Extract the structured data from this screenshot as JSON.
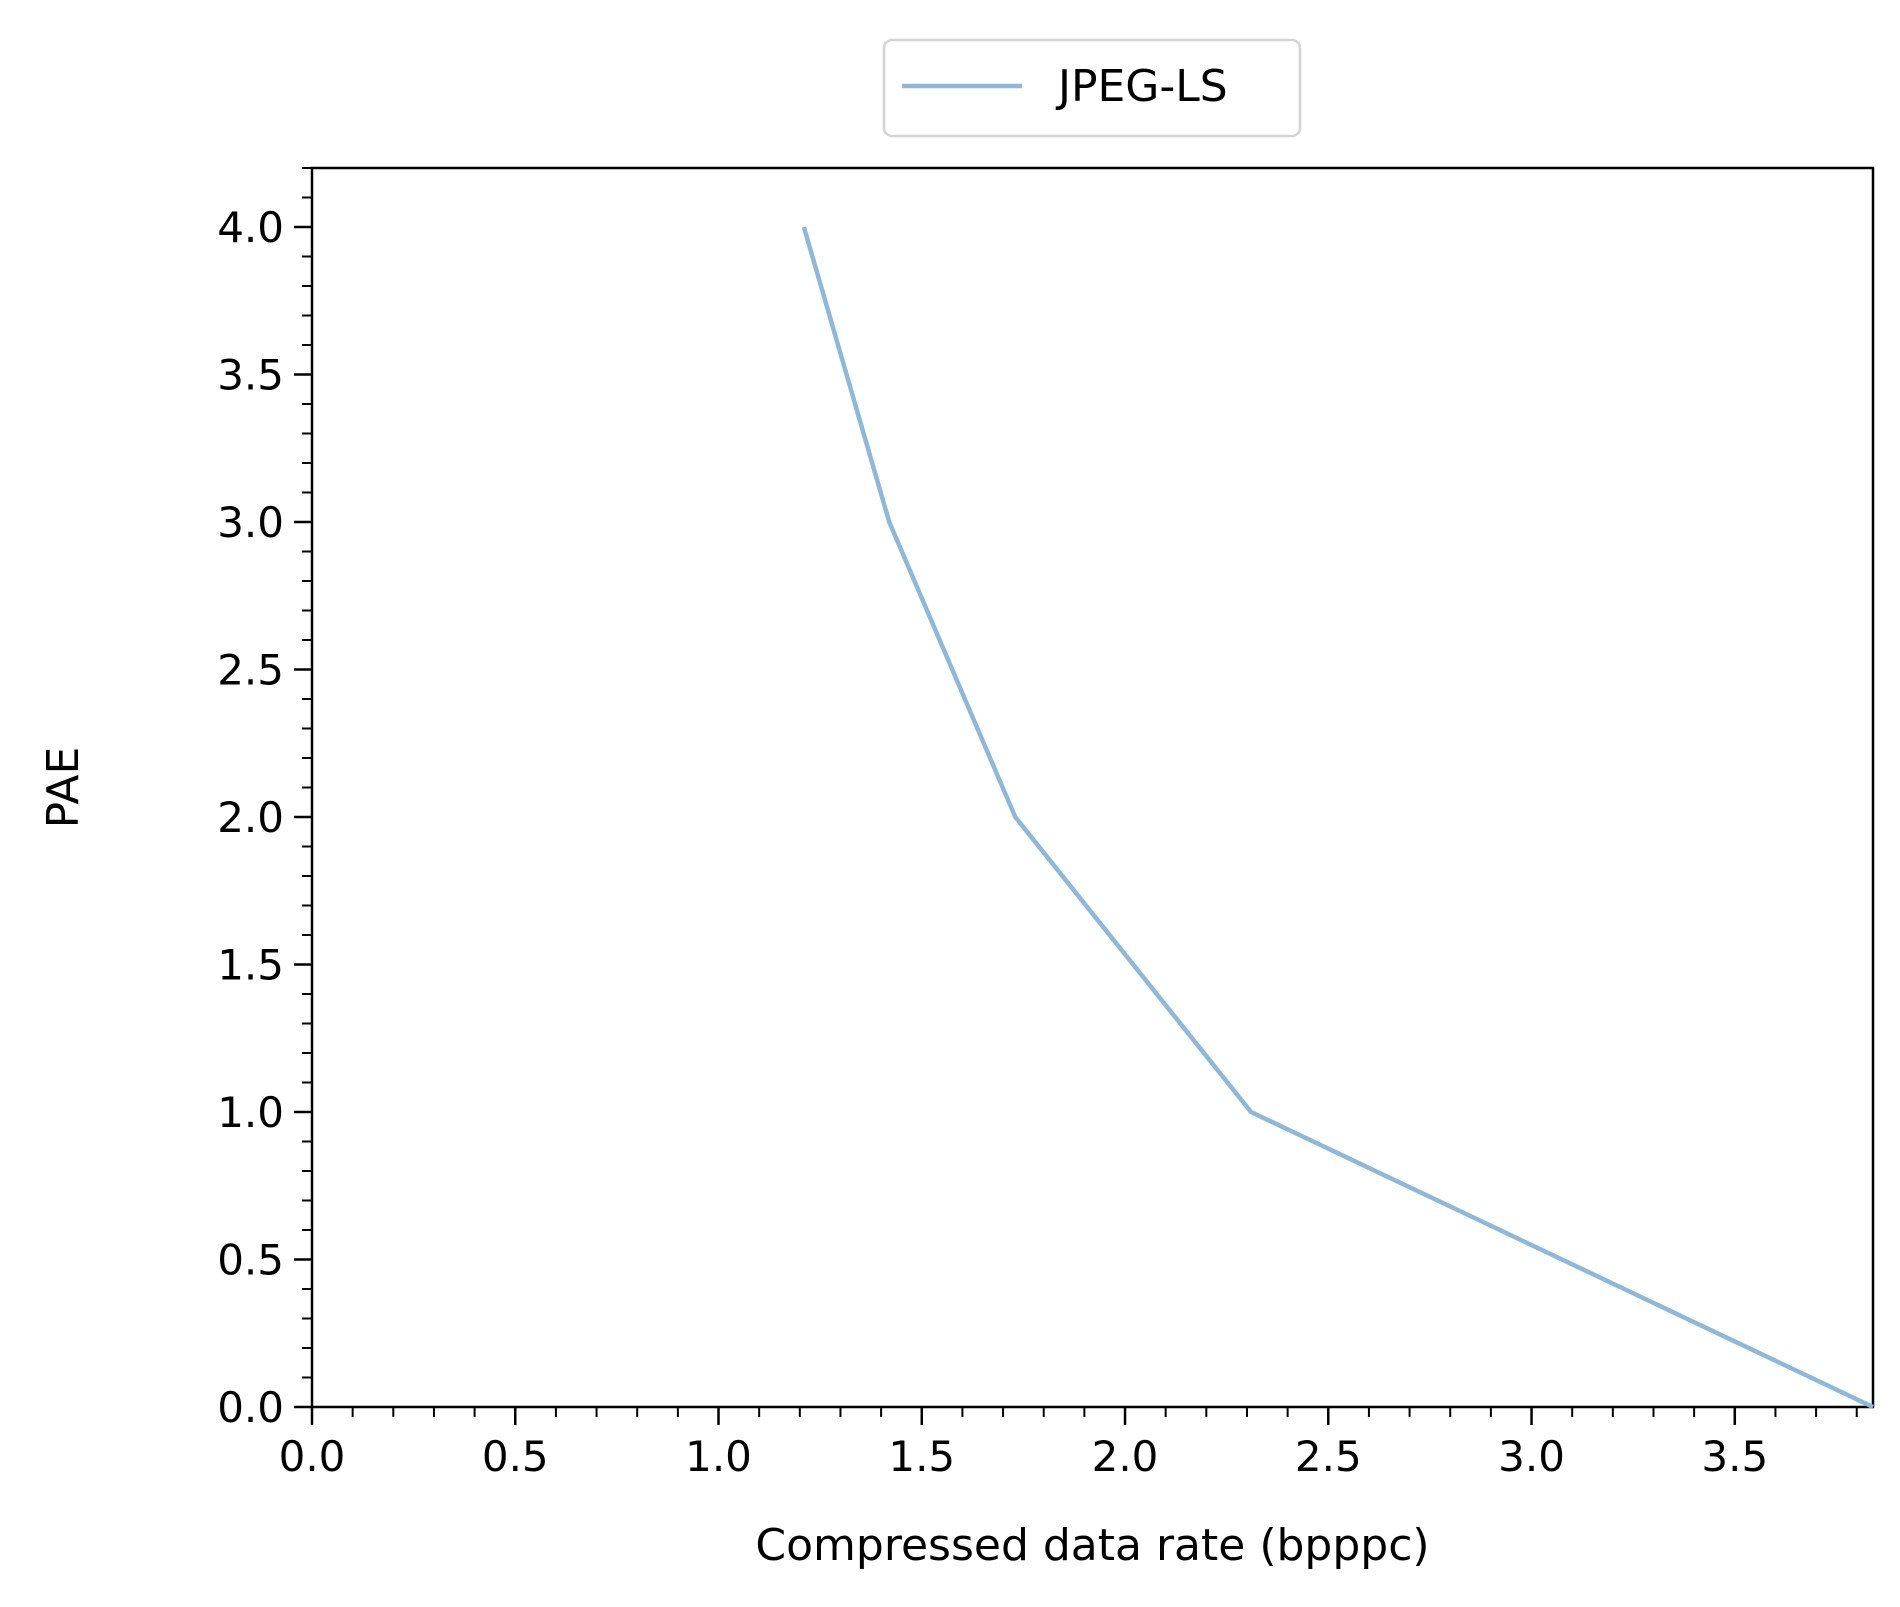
{
  "chart_data": {
    "type": "line",
    "title": "",
    "xlabel": "Compressed data rate (bpppc)",
    "ylabel": "PAE",
    "xlim": [
      0.0,
      3.84
    ],
    "ylim": [
      0.0,
      4.2
    ],
    "xticks": [
      0.0,
      0.5,
      1.0,
      1.5,
      2.0,
      2.5,
      3.0,
      3.5
    ],
    "xtick_labels": [
      "0.0",
      "0.5",
      "1.0",
      "1.5",
      "2.0",
      "2.5",
      "3.0",
      "3.5"
    ],
    "yticks": [
      0.0,
      0.5,
      1.0,
      1.5,
      2.0,
      2.5,
      3.0,
      3.5,
      4.0
    ],
    "ytick_labels": [
      "0.0",
      "0.5",
      "1.0",
      "1.5",
      "2.0",
      "2.5",
      "3.0",
      "3.5",
      "4.0"
    ],
    "x_minor_step": 0.1,
    "y_minor_step": 0.1,
    "grid": false,
    "legend_position": "top-center, outside plot",
    "series": [
      {
        "name": "JPEG-LS",
        "color": "#8fb8d8",
        "x": [
          1.21,
          1.42,
          1.73,
          2.31,
          3.84
        ],
        "y": [
          4.0,
          3.0,
          2.0,
          1.0,
          0.0
        ]
      }
    ]
  }
}
